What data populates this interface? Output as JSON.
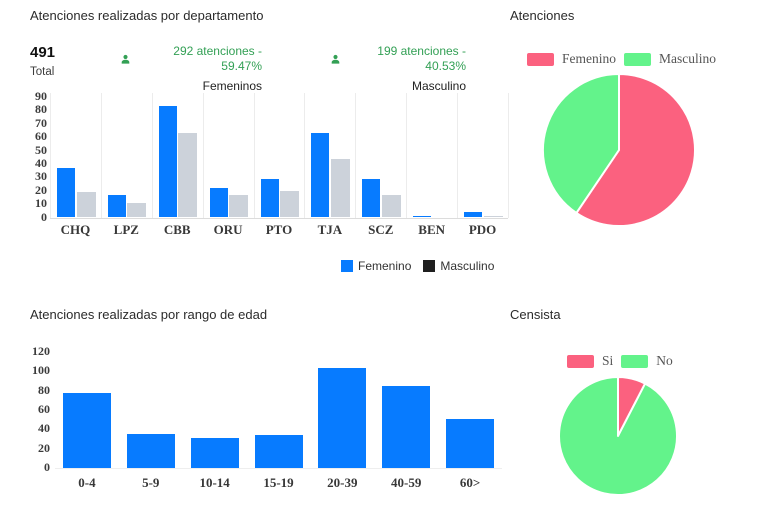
{
  "colors": {
    "bar_blue": "#077bff",
    "bar_gray": "#ccd2da",
    "legend_dark": "#1f1f1f",
    "pink": "#fb617f",
    "green": "#63f38b",
    "stat_green": "#33a055"
  },
  "dept": {
    "title": "Atenciones realizadas por departamento",
    "total_value": "491",
    "total_label": "Total",
    "stats": [
      {
        "text": "292 atenciones - 59.47%",
        "label": "Femeninos"
      },
      {
        "text": "199 atenciones - 40.53%",
        "label": "Masculino"
      }
    ],
    "legend": [
      {
        "label": "Femenino",
        "color": "#077bff"
      },
      {
        "label": "Masculino",
        "color": "#1f1f1f"
      }
    ]
  },
  "age": {
    "title": "Atenciones realizadas por rango de edad"
  },
  "pie_atenciones": {
    "title": "Atenciones"
  },
  "pie_censista": {
    "title": "Censista"
  },
  "chart_data": [
    {
      "type": "bar",
      "title": "Atenciones realizadas por departamento",
      "categories": [
        "CHQ",
        "LPZ",
        "CBB",
        "ORU",
        "PTO",
        "TJA",
        "SCZ",
        "BEN",
        "PDO"
      ],
      "series": [
        {
          "name": "Femenino",
          "values": [
            37,
            17,
            83,
            22,
            29,
            63,
            29,
            1,
            4
          ],
          "color": "#077bff"
        },
        {
          "name": "Masculino",
          "values": [
            19,
            11,
            63,
            17,
            20,
            44,
            17,
            0,
            1
          ],
          "color": "#ccd2da"
        }
      ],
      "xlabel": "",
      "ylabel": "",
      "ylim": [
        0,
        90
      ],
      "ytick_step": 10,
      "grid": "vertical",
      "legend_position": "bottom"
    },
    {
      "type": "pie",
      "title": "Atenciones",
      "labels": [
        "Femenino",
        "Masculino"
      ],
      "values": [
        59.47,
        40.53
      ],
      "unit": "%",
      "colors": [
        "#fb617f",
        "#63f38b"
      ],
      "legend_position": "top"
    },
    {
      "type": "bar",
      "title": "Atenciones realizadas por rango de edad",
      "categories": [
        "0-4",
        "5-9",
        "10-14",
        "15-19",
        "20-39",
        "40-59",
        "60>"
      ],
      "series": [
        {
          "name": "Atenciones",
          "values": [
            78,
            35,
            31,
            34,
            103,
            85,
            51
          ],
          "color": "#077bff"
        }
      ],
      "xlabel": "",
      "ylabel": "",
      "ylim": [
        0,
        120
      ],
      "ytick_step": 20,
      "grid": "none",
      "legend_position": "none"
    },
    {
      "type": "pie",
      "title": "Censista",
      "labels": [
        "Si",
        "No"
      ],
      "values": [
        7.6,
        92.4
      ],
      "unit": "%",
      "colors": [
        "#fb617f",
        "#63f38b"
      ],
      "legend_position": "top"
    }
  ]
}
